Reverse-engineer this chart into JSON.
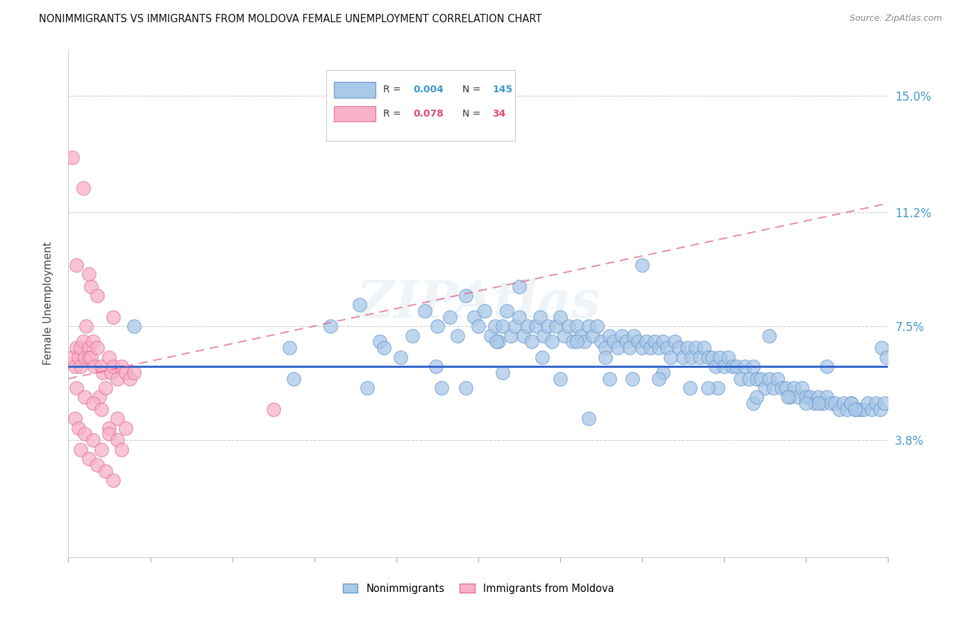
{
  "title": "NONIMMIGRANTS VS IMMIGRANTS FROM MOLDOVA FEMALE UNEMPLOYMENT CORRELATION CHART",
  "source": "Source: ZipAtlas.com",
  "ylabel": "Female Unemployment",
  "ytick_values": [
    3.8,
    7.5,
    11.2,
    15.0
  ],
  "ytick_labels": [
    "3.8%",
    "7.5%",
    "11.2%",
    "15.0%"
  ],
  "xlim": [
    0,
    100
  ],
  "ylim": [
    0.0,
    16.5
  ],
  "blue_fill": "#aac8e8",
  "blue_edge": "#6699cc",
  "pink_fill": "#f8b0c8",
  "pink_edge": "#e07090",
  "trend_blue": "#3366cc",
  "trend_pink": "#e06080",
  "watermark": "ZIPAtlas",
  "ni_x": [
    27.0,
    32.0,
    35.5,
    38.0,
    40.5,
    42.0,
    43.5,
    45.0,
    46.5,
    47.5,
    48.5,
    49.5,
    50.0,
    50.8,
    51.5,
    52.0,
    52.5,
    53.0,
    53.5,
    54.0,
    54.5,
    55.0,
    55.5,
    56.0,
    56.5,
    57.0,
    57.5,
    58.0,
    58.5,
    59.0,
    59.5,
    60.0,
    60.5,
    61.0,
    61.5,
    62.0,
    62.5,
    63.0,
    63.5,
    64.0,
    64.5,
    65.0,
    65.5,
    66.0,
    66.5,
    67.0,
    67.5,
    68.0,
    68.5,
    69.0,
    69.5,
    70.0,
    70.5,
    71.0,
    71.5,
    72.0,
    72.5,
    73.0,
    73.5,
    74.0,
    74.5,
    75.0,
    75.5,
    76.0,
    76.5,
    77.0,
    77.5,
    78.0,
    78.5,
    79.0,
    79.5,
    80.0,
    80.5,
    81.0,
    81.5,
    82.0,
    82.5,
    83.0,
    83.5,
    84.0,
    84.5,
    85.0,
    85.5,
    86.0,
    86.5,
    87.0,
    87.5,
    88.0,
    88.5,
    89.0,
    89.5,
    90.0,
    90.5,
    91.0,
    91.5,
    92.0,
    92.5,
    93.0,
    93.5,
    94.0,
    94.5,
    95.0,
    95.5,
    96.0,
    96.5,
    97.0,
    97.5,
    98.0,
    98.5,
    99.0,
    99.5,
    38.5,
    44.8,
    52.2,
    57.8,
    62.0,
    65.5,
    68.8,
    72.5,
    75.8,
    79.2,
    83.5,
    87.8,
    91.5,
    95.5,
    55.0,
    70.0,
    85.5,
    99.2,
    8.0,
    27.5,
    36.5,
    45.5,
    53.0,
    60.0,
    66.0,
    72.0,
    78.0,
    84.0,
    90.0,
    96.0,
    48.5,
    92.5,
    99.8,
    63.5
  ],
  "ni_y": [
    6.8,
    7.5,
    8.2,
    7.0,
    6.5,
    7.2,
    8.0,
    7.5,
    7.8,
    7.2,
    8.5,
    7.8,
    7.5,
    8.0,
    7.2,
    7.5,
    7.0,
    7.5,
    8.0,
    7.2,
    7.5,
    7.8,
    7.2,
    7.5,
    7.0,
    7.5,
    7.8,
    7.2,
    7.5,
    7.0,
    7.5,
    7.8,
    7.2,
    7.5,
    7.0,
    7.5,
    7.2,
    7.0,
    7.5,
    7.2,
    7.5,
    7.0,
    6.8,
    7.2,
    7.0,
    6.8,
    7.2,
    7.0,
    6.8,
    7.2,
    7.0,
    6.8,
    7.0,
    6.8,
    7.0,
    6.8,
    7.0,
    6.8,
    6.5,
    7.0,
    6.8,
    6.5,
    6.8,
    6.5,
    6.8,
    6.5,
    6.8,
    6.5,
    6.5,
    6.2,
    6.5,
    6.2,
    6.5,
    6.2,
    6.2,
    5.8,
    6.2,
    5.8,
    6.2,
    5.8,
    5.8,
    5.5,
    5.8,
    5.5,
    5.8,
    5.5,
    5.5,
    5.2,
    5.5,
    5.2,
    5.5,
    5.2,
    5.2,
    5.0,
    5.2,
    5.0,
    5.2,
    5.0,
    5.0,
    4.8,
    5.0,
    4.8,
    5.0,
    4.8,
    4.8,
    4.8,
    5.0,
    4.8,
    5.0,
    4.8,
    5.0,
    6.8,
    6.2,
    7.0,
    6.5,
    7.0,
    6.5,
    5.8,
    6.0,
    5.5,
    5.5,
    5.0,
    5.2,
    5.0,
    5.0,
    8.8,
    9.5,
    7.2,
    6.8,
    7.5,
    5.8,
    5.5,
    5.5,
    6.0,
    5.8,
    5.8,
    5.8,
    5.5,
    5.2,
    5.0,
    4.8,
    5.5,
    6.2,
    6.5,
    4.5
  ],
  "im_x": [
    0.5,
    0.8,
    1.0,
    1.2,
    1.5,
    1.5,
    1.8,
    2.0,
    2.2,
    2.5,
    2.5,
    2.8,
    3.0,
    3.2,
    3.5,
    3.8,
    4.0,
    4.2,
    4.5,
    5.0,
    5.2,
    5.5,
    6.0,
    6.5,
    7.0,
    7.5,
    8.0,
    1.0,
    2.0,
    3.0,
    4.0,
    5.0,
    6.0,
    25.0
  ],
  "im_y": [
    6.5,
    6.2,
    6.8,
    6.5,
    6.8,
    6.2,
    7.0,
    6.5,
    7.5,
    6.8,
    6.5,
    6.5,
    7.0,
    6.2,
    6.8,
    5.2,
    6.2,
    6.0,
    5.5,
    6.5,
    6.0,
    6.2,
    5.8,
    6.2,
    6.0,
    5.8,
    6.0,
    5.5,
    5.2,
    5.0,
    4.8,
    4.2,
    4.5,
    4.8
  ],
  "im_x_outliers": [
    0.5,
    1.0,
    2.5,
    2.8,
    3.5,
    5.5,
    1.8
  ],
  "im_y_outliers": [
    13.0,
    9.5,
    9.2,
    8.8,
    8.5,
    7.8,
    12.0
  ],
  "im_x_low": [
    0.8,
    1.2,
    2.0,
    3.0,
    4.0,
    5.0,
    6.0,
    7.0,
    1.5,
    2.5,
    3.5,
    4.5,
    5.5,
    6.5
  ],
  "im_y_low": [
    4.5,
    4.2,
    4.0,
    3.8,
    3.5,
    4.0,
    3.8,
    4.2,
    3.5,
    3.2,
    3.0,
    2.8,
    2.5,
    3.5
  ],
  "pink_trendline_x0": 0,
  "pink_trendline_y0": 5.8,
  "pink_trendline_x1": 100,
  "pink_trendline_y1": 11.5,
  "blue_trendline_y": 6.2
}
